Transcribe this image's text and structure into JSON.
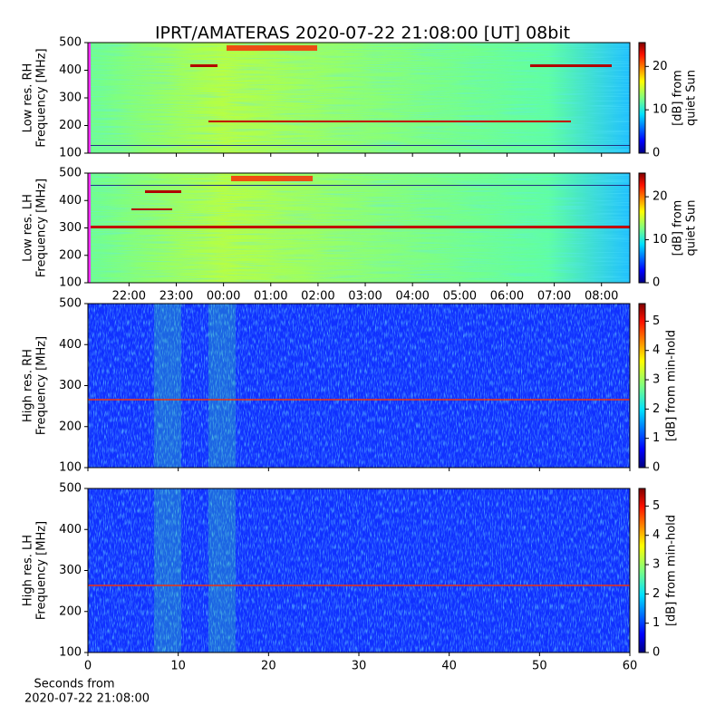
{
  "chart_data": [
    {
      "type": "heatmap",
      "title": "IPRT/AMATERAS 2020-07-22 21:08:00 [UT]   08bit",
      "ylabel": [
        "Low res. RH",
        "Frequency [MHz]"
      ],
      "ylim": [
        100,
        500
      ],
      "yticks": [
        100,
        200,
        300,
        400,
        500
      ],
      "xlim": [
        21.13,
        32.6
      ],
      "xticks": [
        22,
        23,
        24,
        25,
        26,
        27,
        28,
        29,
        30,
        31,
        32
      ],
      "show_xticklabels": false,
      "colorbar_label": [
        "[dB] from",
        "quiet Sun"
      ],
      "clim": [
        0,
        25.5
      ],
      "cticks": [
        0,
        10,
        20
      ],
      "colormap": "jet"
    },
    {
      "type": "heatmap",
      "ylabel": [
        "Low res. LH",
        "Frequency [MHz]"
      ],
      "ylim": [
        100,
        500
      ],
      "yticks": [
        100,
        200,
        300,
        400,
        500
      ],
      "xlim": [
        21.13,
        32.6
      ],
      "xticks": [
        {
          "value": 22,
          "label": "22:00"
        },
        {
          "value": 23,
          "label": "23:00"
        },
        {
          "value": 24,
          "label": "00:00"
        },
        {
          "value": 25,
          "label": "01:00"
        },
        {
          "value": 26,
          "label": "02:00"
        },
        {
          "value": 27,
          "label": "03:00"
        },
        {
          "value": 28,
          "label": "04:00"
        },
        {
          "value": 29,
          "label": "05:00"
        },
        {
          "value": 30,
          "label": "06:00"
        },
        {
          "value": 31,
          "label": "07:00"
        },
        {
          "value": 32,
          "label": "08:00"
        }
      ],
      "show_xticklabels": true,
      "colorbar_label": [
        "[dB] from",
        "quiet Sun"
      ],
      "clim": [
        0,
        25.5
      ],
      "cticks": [
        0,
        10,
        20
      ],
      "colormap": "jet"
    },
    {
      "type": "heatmap",
      "ylabel": [
        "High res. RH",
        "Frequency [MHz]"
      ],
      "ylim": [
        100,
        500
      ],
      "yticks": [
        100,
        200,
        300,
        400,
        500
      ],
      "xlim": [
        0,
        60
      ],
      "xticks": [
        0,
        10,
        20,
        30,
        40,
        50,
        60
      ],
      "show_xticklabels": false,
      "colorbar_label": [
        "[dB] from min-hold"
      ],
      "clim": [
        0,
        5.6
      ],
      "cticks": [
        0,
        1,
        2,
        3,
        4,
        5
      ],
      "colormap": "jet"
    },
    {
      "type": "heatmap",
      "ylabel": [
        "High res. LH",
        "Frequency [MHz]"
      ],
      "ylim": [
        100,
        500
      ],
      "yticks": [
        100,
        200,
        300,
        400,
        500
      ],
      "xlim": [
        0,
        60
      ],
      "xticks": [
        0,
        10,
        20,
        30,
        40,
        50,
        60
      ],
      "show_xticklabels": true,
      "xlabel": [
        "Seconds from",
        "2020-07-22 21:08:00"
      ],
      "colorbar_label": [
        "[dB] from min-hold"
      ],
      "clim": [
        0,
        5.6
      ],
      "cticks": [
        0,
        1,
        2,
        3,
        4,
        5
      ],
      "colormap": "jet"
    }
  ]
}
